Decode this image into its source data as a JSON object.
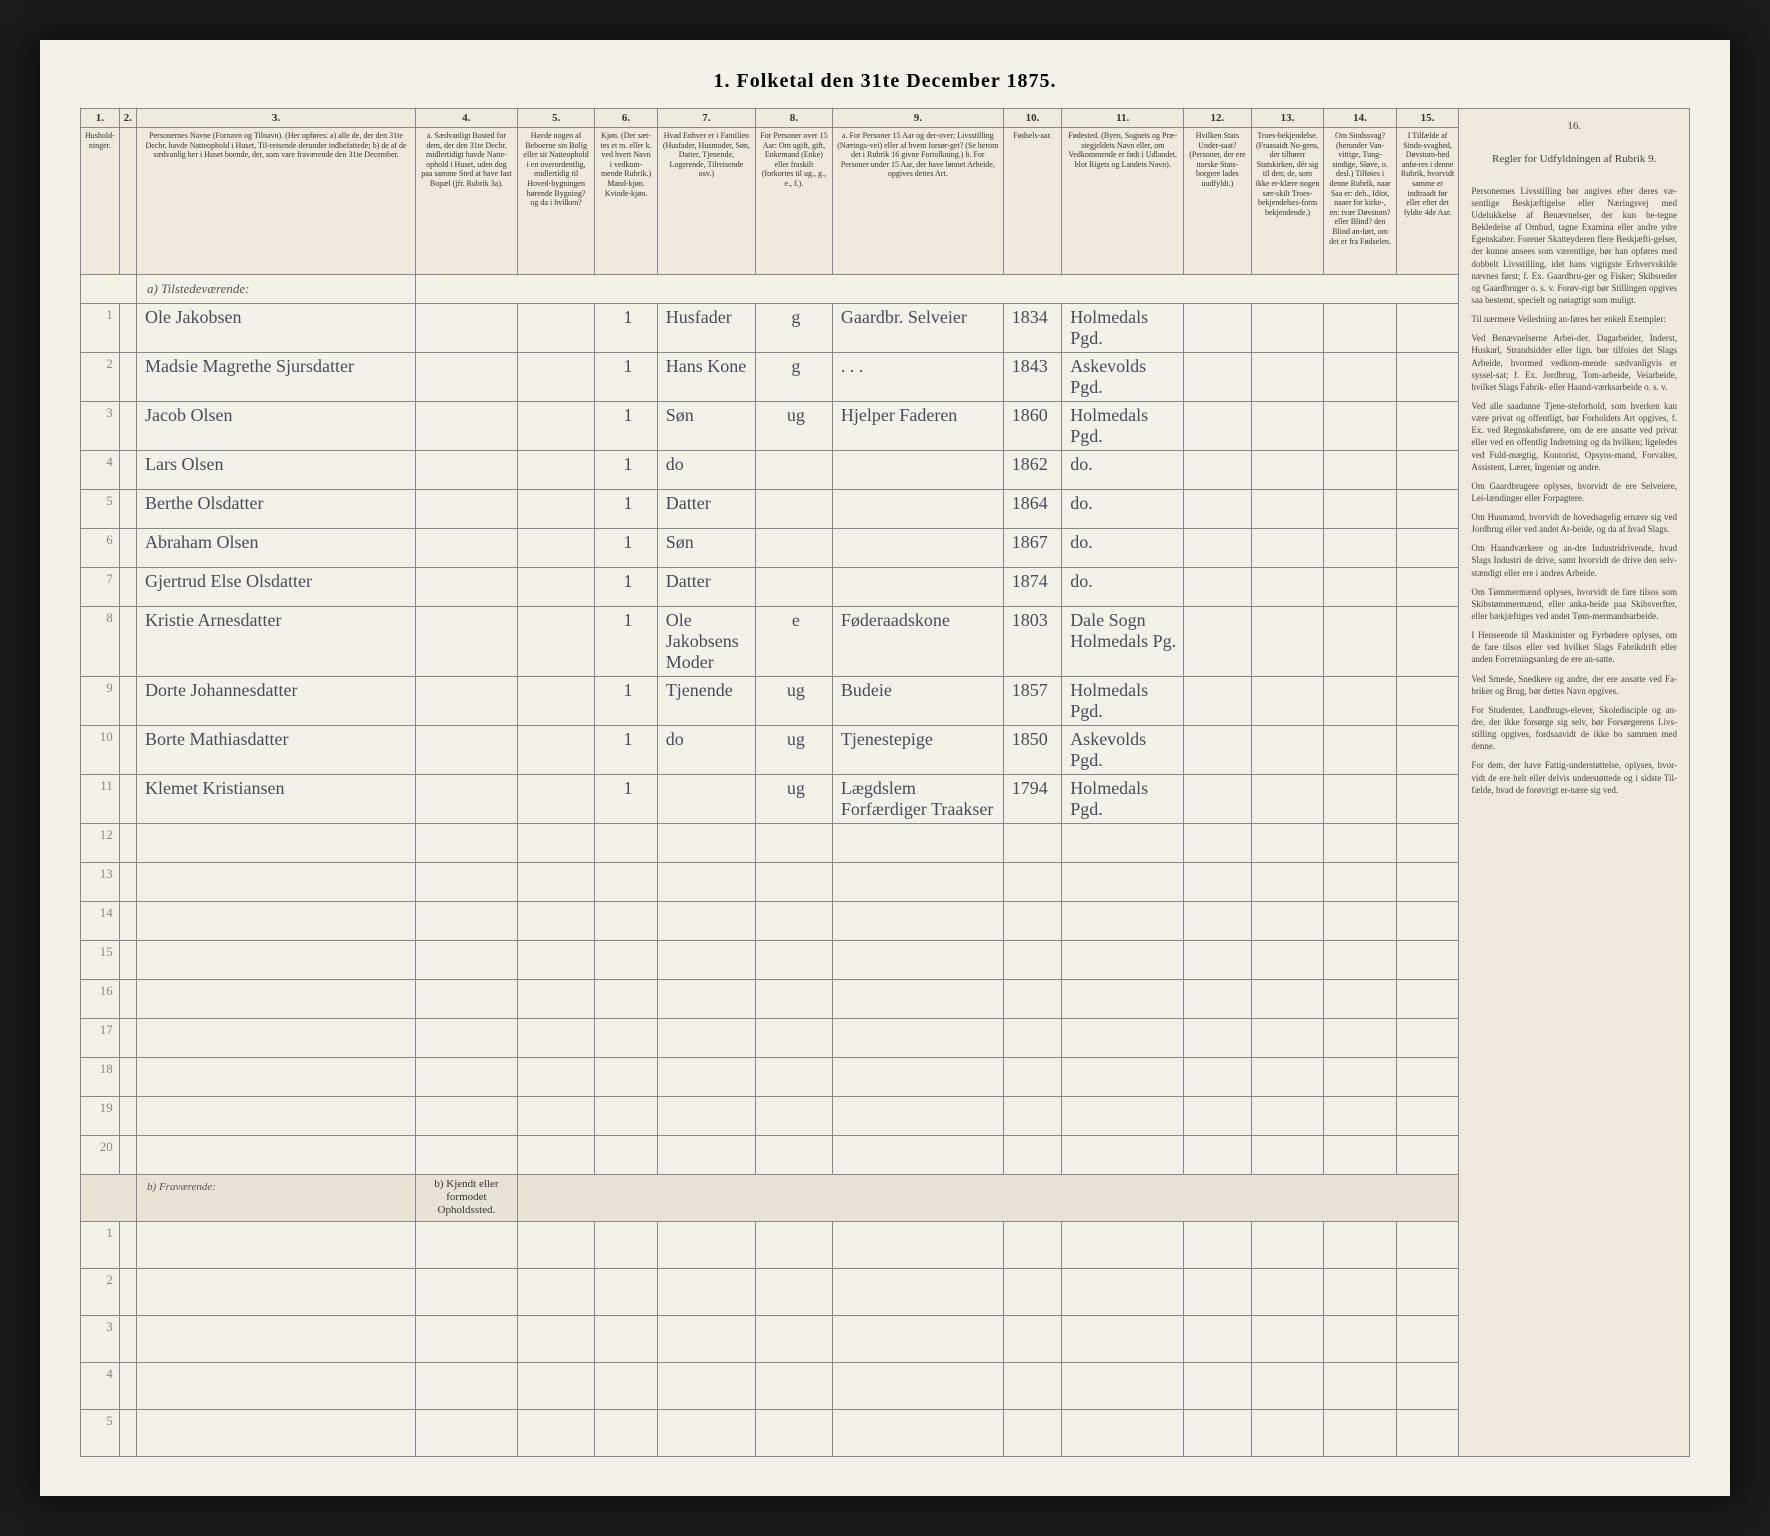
{
  "title": "1. Folketal den 31te December 1875.",
  "columns": [
    {
      "num": "1.",
      "label": "Hushold-ninger."
    },
    {
      "num": "2.",
      "label": ""
    },
    {
      "num": "3.",
      "label": "Personernes Navne (Fornavn og Tilnavn).\n(Her opføres:\na) alle de, der den 31te Decbr. havde Natteophold i Huset, Til-reisende derunder indbefattede;\nb) de af de sædvanlig her i Huset boende, der, som vare fraværende den 31te December."
    },
    {
      "num": "4.",
      "label": "a. Sædvanligt Bosted for dem, der den 31te Decbr. midlertidigt havde Natte-ophold i Huset, uden dog paa samme Sted at have fast Bopæl (jfr. Rubrik 3a)."
    },
    {
      "num": "5.",
      "label": "Havde nogen af Beboerne sin Bolig eller sit Natteophold i en overordentlig, midlertidig til Hoved-bygningen hørende Bygning? og da i hvilken?"
    },
    {
      "num": "6.",
      "label": "Kjøn. (Der sæt-tes et m. eller k. ved hvert Navn i vedkom-mende Rubrik.)\nMand-kjøn. Kvinde-kjøn."
    },
    {
      "num": "7.",
      "label": "Hvad Enhver er i Familien (Husfader, Husmoder, Søn, Datter, Tjenende, Logerende, Tilreisende osv.)"
    },
    {
      "num": "8.",
      "label": "For Personer over 15 Aar: Om ugift, gift, Enkemand (Enke) eller fraskilt (forkortes til ug., g., e., f.)."
    },
    {
      "num": "9.",
      "label": "a. For Personer 15 Aar og der-over; Livsstilling (Nærings-vei) eller af hvem forsør-get? (Se herom det i Rubrik 16 givne Fortolkning.)\nb. For Personer under 15 Aar, der have lønnet Arbeide, opgives dettes Art."
    },
    {
      "num": "10.",
      "label": "Fødsels-aar."
    },
    {
      "num": "11.",
      "label": "Fødested.\n(Byen, Sognets og Præ-stegjeldets Navn eller, om Vedkommende er født i Udlandet, blot Rigets og Landets Navn)."
    },
    {
      "num": "12.",
      "label": "Hvilken Stats Under-saat?\n(Personer, der ere norske Stats-borgere lades uudfyldt.)"
    },
    {
      "num": "13.",
      "label": "Troes-bekjendelse.\n(Fraasaidt No-gens, der tilhører Statskirken, dér sig til den; de, som ikke er-klære nogen sær-skilt Troes-bekjendelses-form bekjendende.)"
    },
    {
      "num": "14.",
      "label": "Om Sindssvag? (herunder Van-vittige, Tung-sindige, Sløve, o. desl.)\nTilføies i denne Rubrik, naar Saa er: deh., Idiot, naaer for kirke-, en: tvær Døvstum? eller Blind?\nden Blind an-ført, om det er fra Fødselen."
    },
    {
      "num": "15.",
      "label": "I Tilfælde af Sinds-svaghed, Døvstum-hed anfø-res i denne Rubrik, hvorvidt samme er indtraadt før eller efter det fyldte 4de Aar."
    },
    {
      "num": "16.",
      "label": "Regler for Udfyldningen\naf\nRubrik 9."
    }
  ],
  "section_present": "a) Tilstedeværende:",
  "section_absent": "b) Fraværende:",
  "absent_col4_label": "b) Kjendt eller formodet Opholdssted.",
  "rows": [
    {
      "n": "1",
      "name": "Ole Jakobsen",
      "col6": "1",
      "col7": "Husfader",
      "col8": "g",
      "col9": "Gaardbr. Selveier",
      "col10": "1834",
      "col11": "Holmedals Pgd."
    },
    {
      "n": "2",
      "name": "Madsie Magrethe Sjursdatter",
      "col6": "1",
      "col7": "Hans Kone",
      "col8": "g",
      "col9": ". . .",
      "col10": "1843",
      "col11": "Askevolds Pgd."
    },
    {
      "n": "3",
      "name": "Jacob Olsen",
      "col6": "1",
      "col7": "Søn",
      "col8": "ug",
      "col9": "Hjelper Faderen",
      "col10": "1860",
      "col11": "Holmedals Pgd."
    },
    {
      "n": "4",
      "name": "Lars Olsen",
      "col6": "1",
      "col7": "do",
      "col8": "",
      "col9": "",
      "col10": "1862",
      "col11": "do."
    },
    {
      "n": "5",
      "name": "Berthe Olsdatter",
      "col6": "1",
      "col7": "Datter",
      "col8": "",
      "col9": "",
      "col10": "1864",
      "col11": "do."
    },
    {
      "n": "6",
      "name": "Abraham Olsen",
      "col6": "1",
      "col7": "Søn",
      "col8": "",
      "col9": "",
      "col10": "1867",
      "col11": "do."
    },
    {
      "n": "7",
      "name": "Gjertrud Else Olsdatter",
      "col6": "1",
      "col7": "Datter",
      "col8": "",
      "col9": "",
      "col10": "1874",
      "col11": "do."
    },
    {
      "n": "8",
      "name": "Kristie Arnesdatter",
      "col6": "1",
      "col7": "Ole Jakobsens Moder",
      "col8": "e",
      "col9": "Føderaadskone",
      "col10": "1803",
      "col11": "Dale Sogn Holmedals Pg."
    },
    {
      "n": "9",
      "name": "Dorte Johannesdatter",
      "col6": "1",
      "col7": "Tjenende",
      "col8": "ug",
      "col9": "Budeie",
      "col10": "1857",
      "col11": "Holmedals Pgd."
    },
    {
      "n": "10",
      "name": "Borte Mathiasdatter",
      "col6": "1",
      "col7": "do",
      "col8": "ug",
      "col9": "Tjenestepige",
      "col10": "1850",
      "col11": "Askevolds Pgd."
    },
    {
      "n": "11",
      "name": "Klemet Kristiansen",
      "col6": "1",
      "col7": "",
      "col8": "ug",
      "col9": "Lægdslem Forfærdiger Traakser",
      "col10": "1794",
      "col11": "Holmedals Pgd."
    }
  ],
  "empty_rows": [
    "12",
    "13",
    "14",
    "15",
    "16",
    "17",
    "18",
    "19",
    "20"
  ],
  "absent_empty": [
    "1",
    "2",
    "3",
    "4",
    "5"
  ],
  "rules": {
    "header": "Regler for Udfyldningen af Rubrik 9.",
    "p1": "Personernes Livsstilling bør angives efter deres væ-sentlige Beskjæftigelse eller Næringsvej med Udelukkelse af Benævnelser, der kun be-tegne Bekledelse af Ombud, tagne Examina eller andre ydre Egenskaber. Forener Skatteyderen flere Beskjæfti-gelser, der kunne ansees som værentlige, bør han opføres med dobbelt Livsstilling, idet hans vigtigste Erhvervskilde nævnes først; f. Ex. Gaardbru-ger og Fisker; Skibsreder og Gaardbruger o. s. v. Forøv-rigt bør Stillingen opgives saa bestemt, specielt og nøiagtigt som muligt.",
    "p2": "Til nærmere Veiledning an-føres her enkelt Exempler:",
    "p3": "Ved Benævnelserne Arbei-der, Dagarbeider, Inderst, Huskarl, Strandsidder eller lign. bør tilfoies det Slags Arbeide, hvormed vedkom-mende sædvanligvis er syssel-sat; f. Ex. Jordbrug, Tom-arbeide, Veiarbeide, hvilket Slags Fabrik- eller Haand-værksarbeide o. s. v.",
    "p4": "Ved alle saadanne Tjene-steforhold, som hverken kan være privat og offentligt, bør Forholdets Art opgives, f. Ex. ved Regnskabsførere, om de ere ansatte ved privat eller ved en offentlig Indretning og da hvilken; ligeledes ved Fuld-mægtig, Kontorist, Opsyns-mand, Forvalter, Assistent, Lærer, Ingeniør og andre.",
    "p5": "Om Gaardbrugere oplyses, hvorvidt de ere Selveiere, Lei-lændinger eller Forpagtere.",
    "p6": "Om Husmænd, hvorvidt de hovedsagelig ernære sig ved Jordbrug eller ved andet Ar-beide, og da af hvad Slags.",
    "p7": "Om Haandværkere og an-dre Industridrivende, hvad Slags Industri de drive, samt hvorvidt de drive den selv-stændigt eller ere i andres Arbeide.",
    "p8": "Om Tømmermænd oplyses, hvorvidt de fare tilsos som Skibstømmermænd, eller anka-beide paa Skibsverfter, eller bækjæftiges ved andet Tøm-mermandsarbeide.",
    "p9": "I Henseende til Maskinister og Fyrbødere oplyses, om de fare tilsos eller ved hvilket Slags Fabrikdrift eller anden Forretningsanlæg de ere an-satte.",
    "p10": "Ved Smede, Snedkere og andre, der ere ansatte ved Fa-briker og Brug, bør dettes Navn opgives.",
    "p11": "For Studenter, Landbrugs-elever, Skoledisciple og an-dre, der ikke forsørge sig selv, bør Forsørgerens Livs-stilling opgives, fordsaavidt de ikke bo sammen med denne.",
    "p12": "For dem, der have Fattig-understøttelse, oplyses, hvor-vidt de ere helt eller delvis understøttede og i sidste Til-fælde, hvad de forøvrigt er-nære sig ved."
  }
}
